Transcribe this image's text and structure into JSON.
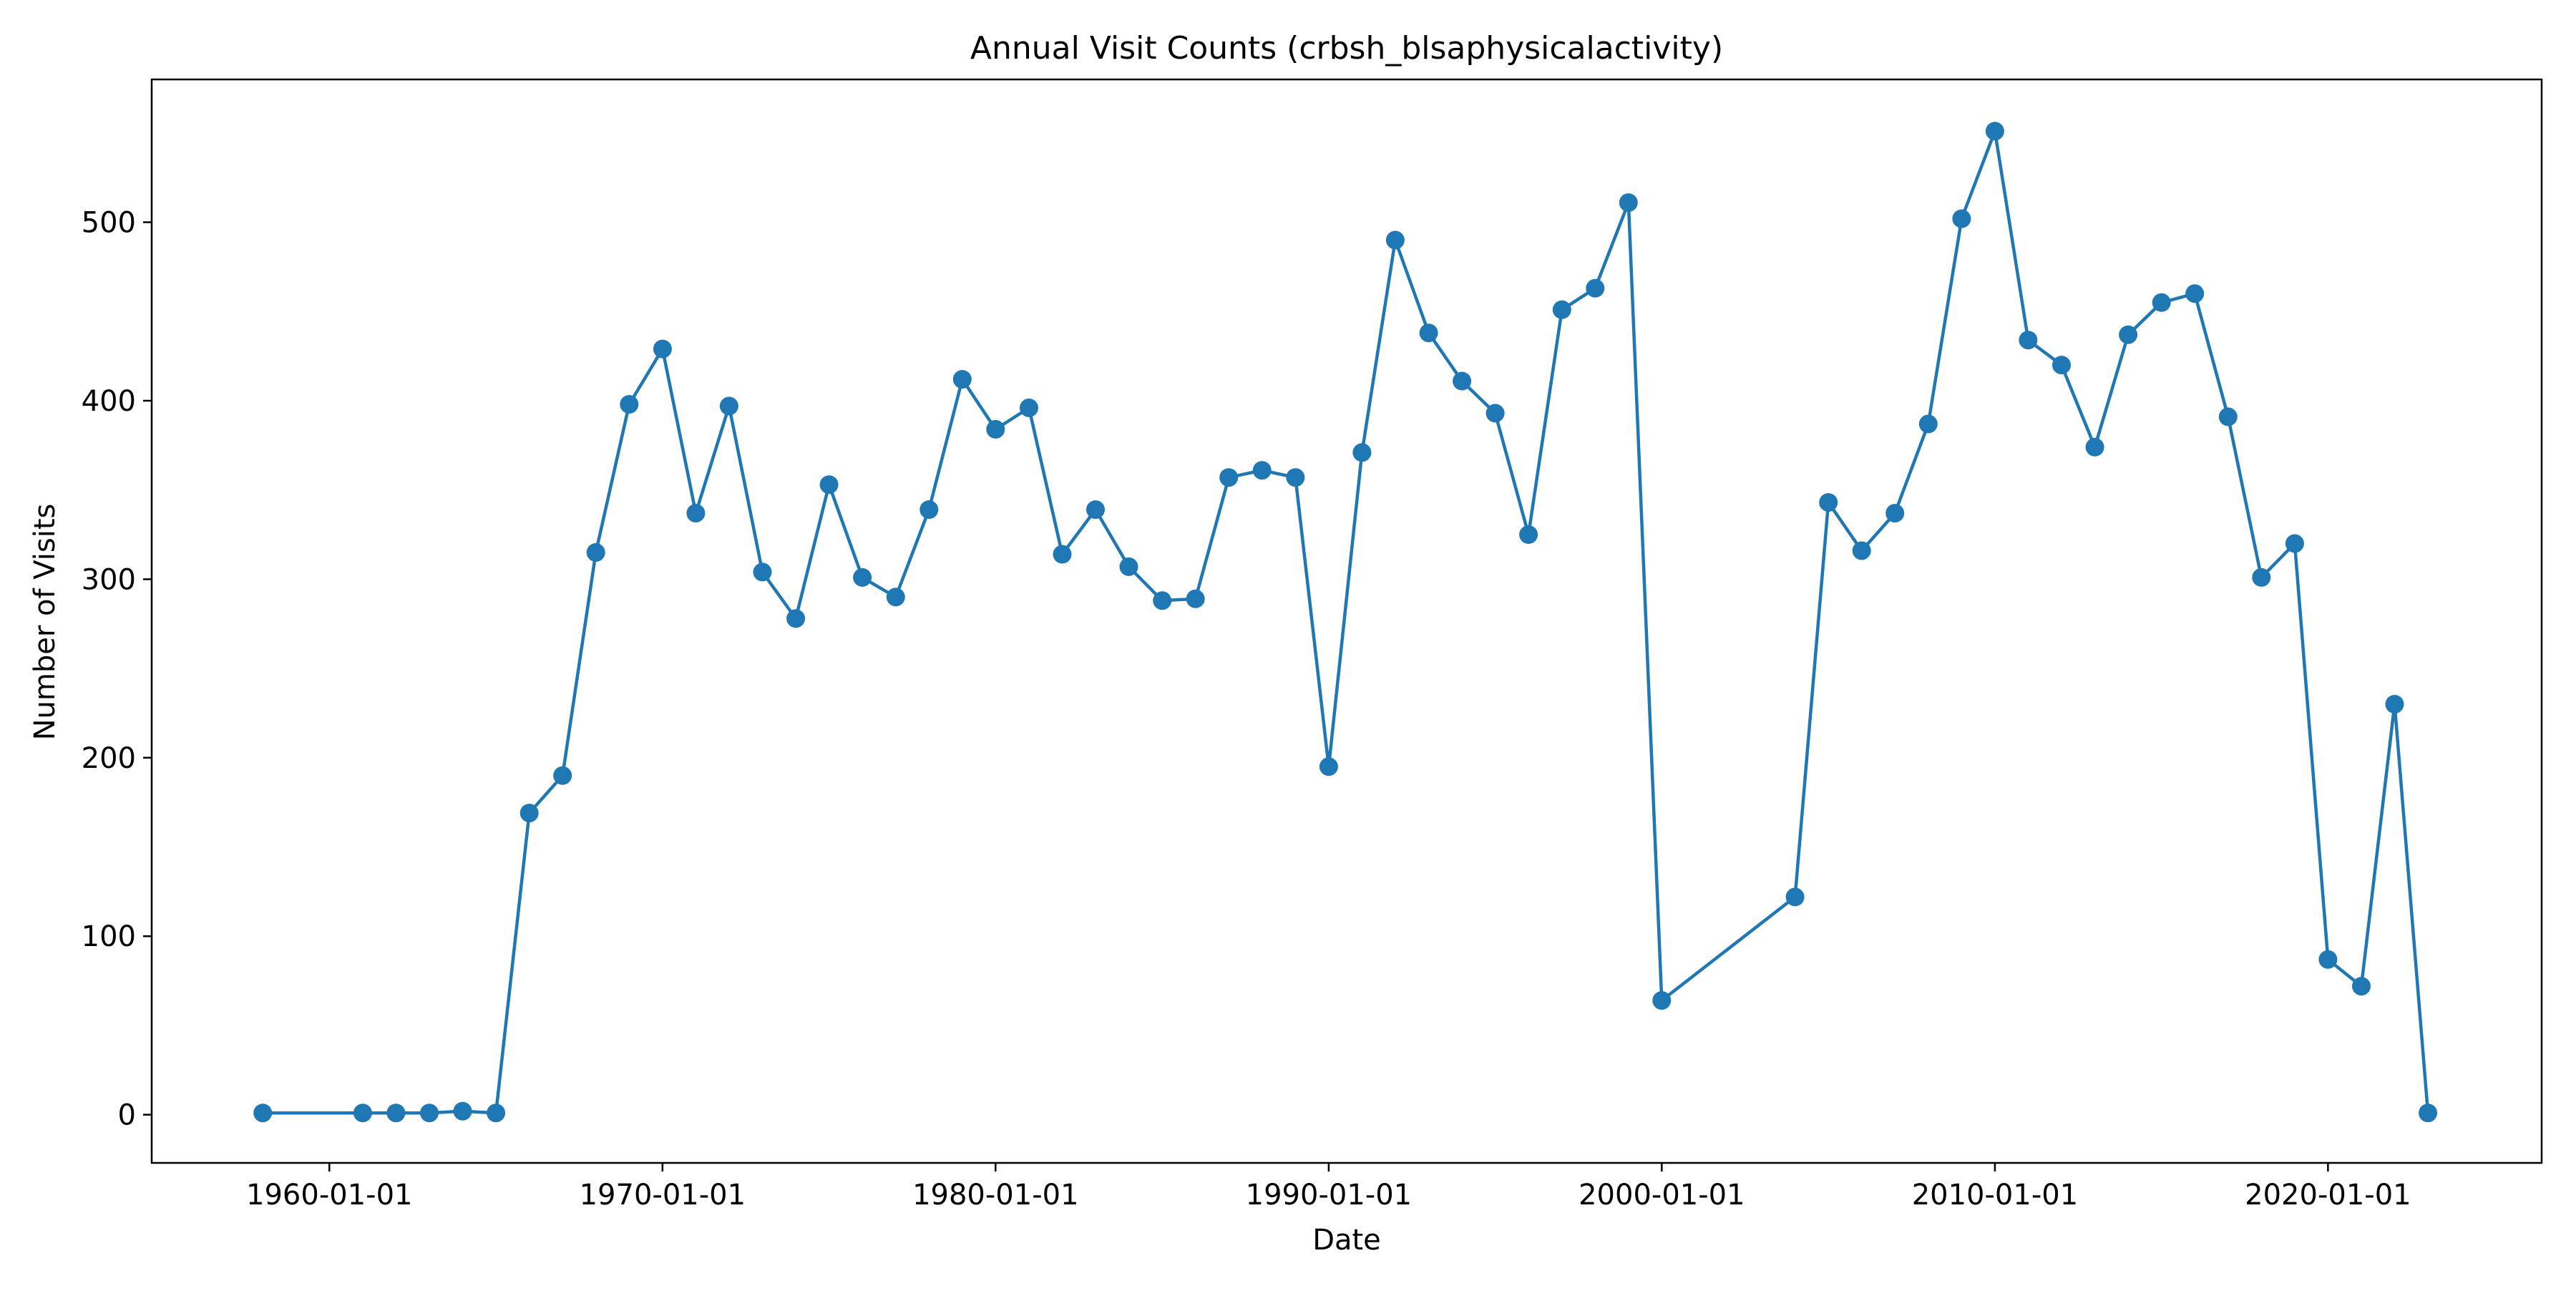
{
  "chart_data": {
    "type": "line",
    "title": "Annual Visit Counts (crbsh_blsaphysicalactivity)",
    "xlabel": "Date",
    "ylabel": "Number of Visits",
    "x_ticks": [
      "1960-01-01",
      "1970-01-01",
      "1980-01-01",
      "1990-01-01",
      "2000-01-01",
      "2010-01-01",
      "2020-01-01"
    ],
    "y_ticks": [
      0,
      100,
      200,
      300,
      400,
      500
    ],
    "xlim": [
      "1954-09-01",
      "2026-06-01"
    ],
    "ylim": [
      -27,
      580
    ],
    "grid": false,
    "marker": "circle",
    "colors": {
      "series": "#1f77b4",
      "axes": "#000000",
      "background": "#ffffff"
    },
    "series": [
      {
        "x": [
          "1958-01-01",
          "1961-01-01",
          "1962-01-01",
          "1963-01-01",
          "1964-01-01",
          "1965-01-01",
          "1966-01-01",
          "1967-01-01",
          "1968-01-01",
          "1969-01-01",
          "1970-01-01",
          "1971-01-01",
          "1972-01-01",
          "1973-01-01",
          "1974-01-01",
          "1975-01-01",
          "1976-01-01",
          "1977-01-01",
          "1978-01-01",
          "1979-01-01",
          "1980-01-01",
          "1981-01-01",
          "1982-01-01",
          "1983-01-01",
          "1984-01-01",
          "1985-01-01",
          "1986-01-01",
          "1987-01-01",
          "1988-01-01",
          "1989-01-01",
          "1990-01-01",
          "1991-01-01",
          "1992-01-01",
          "1993-01-01",
          "1994-01-01",
          "1995-01-01",
          "1996-01-01",
          "1997-01-01",
          "1998-01-01",
          "1999-01-01",
          "2000-01-01",
          "2004-01-01",
          "2005-01-01",
          "2006-01-01",
          "2007-01-01",
          "2008-01-01",
          "2009-01-01",
          "2010-01-01",
          "2011-01-01",
          "2012-01-01",
          "2013-01-01",
          "2014-01-01",
          "2015-01-01",
          "2016-01-01",
          "2017-01-01",
          "2018-01-01",
          "2019-01-01",
          "2020-01-01",
          "2021-01-01",
          "2022-01-01",
          "2023-01-01"
        ],
        "values": [
          1,
          1,
          1,
          1,
          2,
          1,
          169,
          190,
          315,
          398,
          429,
          337,
          397,
          304,
          278,
          353,
          301,
          290,
          339,
          412,
          384,
          396,
          314,
          339,
          307,
          288,
          289,
          357,
          361,
          357,
          195,
          371,
          490,
          438,
          411,
          393,
          325,
          451,
          463,
          511,
          64,
          122,
          343,
          316,
          337,
          387,
          502,
          551,
          434,
          420,
          374,
          437,
          455,
          460,
          391,
          301,
          320,
          87,
          72,
          230,
          1
        ]
      }
    ]
  }
}
